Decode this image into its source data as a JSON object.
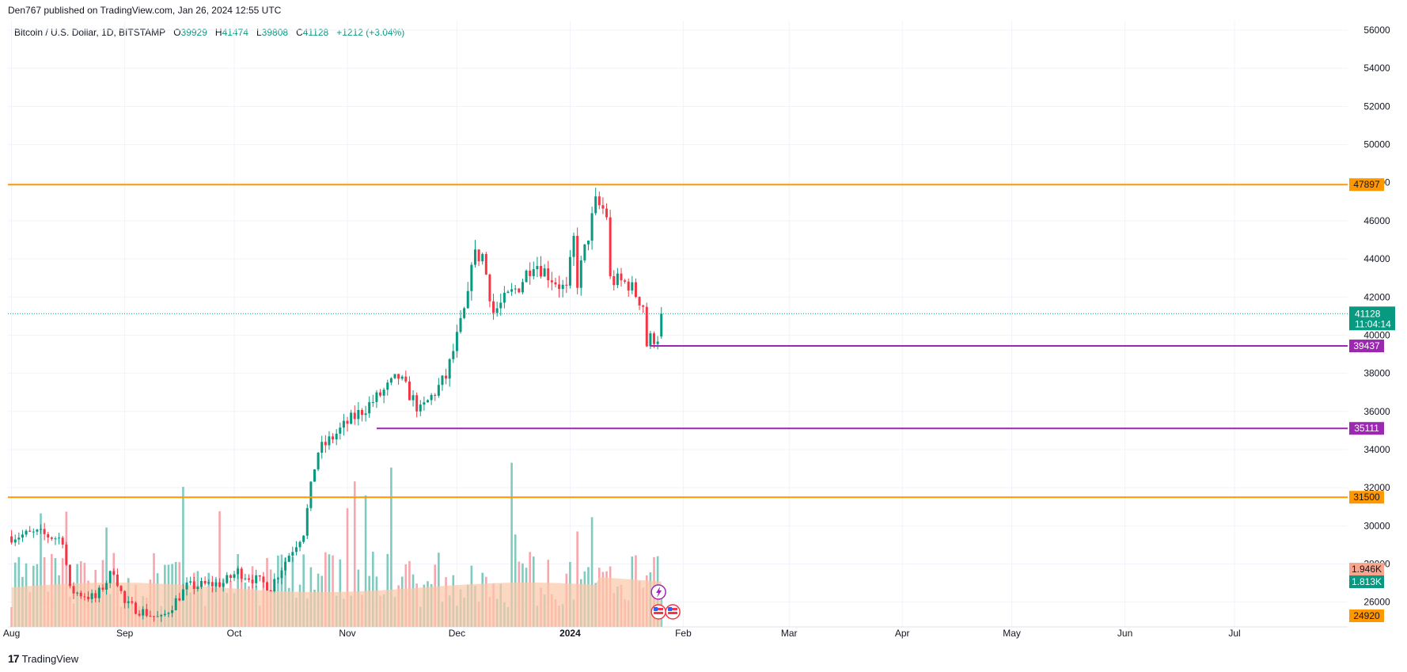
{
  "header": {
    "published": "Den767 published on TradingView.com, Jan 26, 2024 12:55 UTC"
  },
  "legend": {
    "symbol": "Bitcoin / U.S. Dollar, 1D, BITSTAMP",
    "o_label": "O",
    "o": "39929",
    "h_label": "H",
    "h": "41474",
    "l_label": "L",
    "l": "39808",
    "c_label": "C",
    "c": "41128",
    "change": "+1212 (+3.04%)"
  },
  "footer": {
    "logo_mark": "17",
    "brand": "TradingView"
  },
  "chart_data": {
    "type": "candlestick",
    "price_axis": {
      "ylim": [
        24700,
        56500
      ],
      "ticks": [
        26000,
        28000,
        30000,
        32000,
        34000,
        36000,
        38000,
        40000,
        42000,
        44000,
        46000,
        48000,
        50000,
        52000,
        54000,
        56000
      ]
    },
    "time_axis": {
      "labels": [
        "Aug",
        "Sep",
        "Oct",
        "Nov",
        "Dec",
        "2024",
        "Feb",
        "Mar",
        "Apr",
        "May",
        "Jun",
        "Jul"
      ],
      "bold": [
        "2024"
      ]
    },
    "grid": true,
    "last_price": {
      "value": 41128,
      "label": "41128",
      "countdown": "11:04:14",
      "color": "#089981"
    },
    "horizontal_levels": [
      {
        "value": 47897,
        "label": "47897",
        "color": "#ff9800"
      },
      {
        "value": 31500,
        "label": "31500",
        "color": "#ff9800"
      },
      {
        "value": 39437,
        "label": "39437",
        "color": "#9c27b0",
        "from_date": "2024-01-23"
      },
      {
        "value": 35111,
        "label": "35111",
        "color": "#9c27b0",
        "from_date": "2023-11-09"
      }
    ],
    "volume": {
      "sell_label": "1.946K",
      "buy_label": "1.813K",
      "ma_label": "24920",
      "ma_color": "#ff9800"
    },
    "colors": {
      "up": "#089981",
      "down": "#f23645",
      "vol_up": "#7fcbc0",
      "vol_down": "#f7a6ad",
      "vol_ma_fill": "#fbc8a8",
      "grid": "#f0f3fa",
      "axis_text": "#131722"
    },
    "series_closes": [
      {
        "d": "2023-08-01",
        "c": 29450
      },
      {
        "d": "2023-08-08",
        "c": 29600
      },
      {
        "d": "2023-08-15",
        "c": 29300
      },
      {
        "d": "2023-08-17",
        "c": 26600
      },
      {
        "d": "2023-08-24",
        "c": 26200
      },
      {
        "d": "2023-08-29",
        "c": 27700
      },
      {
        "d": "2023-09-01",
        "c": 25900
      },
      {
        "d": "2023-09-11",
        "c": 25100
      },
      {
        "d": "2023-09-18",
        "c": 26800
      },
      {
        "d": "2023-09-28",
        "c": 27000
      },
      {
        "d": "2023-10-02",
        "c": 27600
      },
      {
        "d": "2023-10-11",
        "c": 26800
      },
      {
        "d": "2023-10-16",
        "c": 28500
      },
      {
        "d": "2023-10-20",
        "c": 29700
      },
      {
        "d": "2023-10-23",
        "c": 33100
      },
      {
        "d": "2023-10-24",
        "c": 33900
      },
      {
        "d": "2023-11-01",
        "c": 35400
      },
      {
        "d": "2023-11-09",
        "c": 36700
      },
      {
        "d": "2023-11-15",
        "c": 37800
      },
      {
        "d": "2023-11-21",
        "c": 36000
      },
      {
        "d": "2023-11-28",
        "c": 37800
      },
      {
        "d": "2023-12-04",
        "c": 41900
      },
      {
        "d": "2023-12-05",
        "c": 44100
      },
      {
        "d": "2023-12-08",
        "c": 44200
      },
      {
        "d": "2023-12-11",
        "c": 41200
      },
      {
        "d": "2023-12-18",
        "c": 42600
      },
      {
        "d": "2023-12-22",
        "c": 43900
      },
      {
        "d": "2023-12-31",
        "c": 42300
      },
      {
        "d": "2024-01-02",
        "c": 45000
      },
      {
        "d": "2024-01-03",
        "c": 42800
      },
      {
        "d": "2024-01-08",
        "c": 46900
      },
      {
        "d": "2024-01-10",
        "c": 46600
      },
      {
        "d": "2024-01-11",
        "c": 46300
      },
      {
        "d": "2024-01-12",
        "c": 42900
      },
      {
        "d": "2024-01-17",
        "c": 42700
      },
      {
        "d": "2024-01-21",
        "c": 41600
      },
      {
        "d": "2024-01-22",
        "c": 39500
      },
      {
        "d": "2024-01-23",
        "c": 39800
      },
      {
        "d": "2024-01-25",
        "c": 39929
      },
      {
        "d": "2024-01-26",
        "c": 41128
      }
    ]
  }
}
